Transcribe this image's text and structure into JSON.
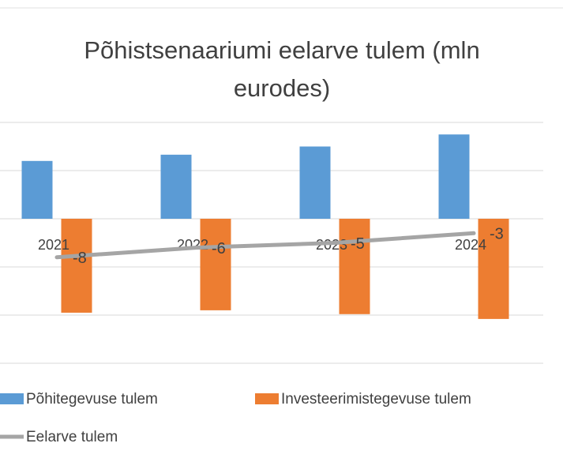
{
  "chart_data": {
    "type": "bar+line",
    "title": "Põhistsenaariumi eelarve tulem (mln eurodes)",
    "categories": [
      "2021",
      "2022",
      "2023",
      "2024"
    ],
    "series": [
      {
        "name": "Põhitegevuse tulem",
        "type": "bar",
        "color": "#5b9bd5",
        "values": [
          12,
          13.3,
          15,
          17.5
        ]
      },
      {
        "name": "Investeerimistegevuse tulem",
        "type": "bar",
        "color": "#ed7d31",
        "values": [
          -19.5,
          -19,
          -19.8,
          -20.8
        ]
      },
      {
        "name": "Eelarve tulem",
        "type": "line",
        "color": "#a5a5a5",
        "values": [
          -8,
          -6,
          -5,
          -3
        ]
      }
    ],
    "ylim": [
      -30,
      20
    ],
    "yticks": [
      -30,
      -20,
      -10,
      0,
      10,
      20
    ],
    "grid": true,
    "legend": "bottom"
  }
}
